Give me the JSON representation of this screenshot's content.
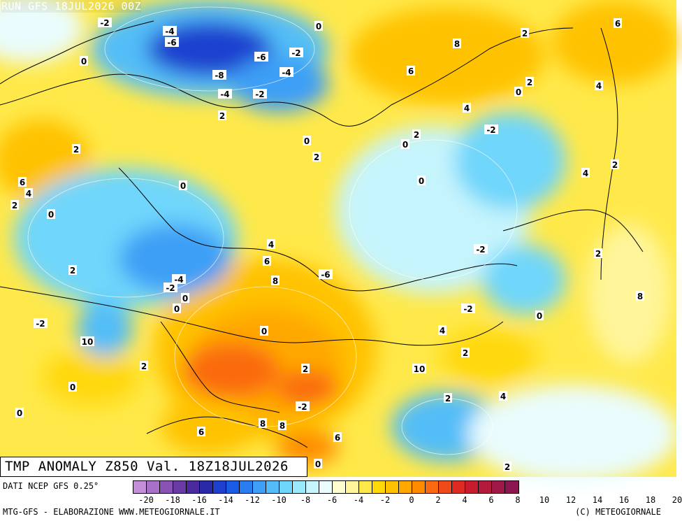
{
  "run_label": "RUN GFS 18JUL2026 00Z",
  "title": "TMP ANOMALY Z850 Val. 18Z18JUL2026",
  "data_source": "DATI NCEP GFS 0.25°",
  "footer_left": "MTG-GFS - ELABORAZIONE WWW.METEOGIORNALE.IT",
  "footer_right": "(C) METEOGIORNALE",
  "colorbar": {
    "colors": [
      "#c58fd8",
      "#a870c8",
      "#8b52b5",
      "#6a3ba6",
      "#4b2a9e",
      "#2a2aa8",
      "#1f3fcf",
      "#1a5be6",
      "#2a7df0",
      "#3e9ff6",
      "#52bdf8",
      "#6fd6fb",
      "#9ae9fc",
      "#c6f4fc",
      "#eafcfd",
      "#fdfdd0",
      "#fff59a",
      "#ffe94a",
      "#ffd80a",
      "#ffc200",
      "#ffa800",
      "#ff8c00",
      "#fb6a10",
      "#f04a1a",
      "#dd2a22",
      "#c81c2e",
      "#b31a3c",
      "#a01848",
      "#8e1650"
    ],
    "tick_labels": [
      "-20",
      "-18",
      "-16",
      "-14",
      "-12",
      "-10",
      "-8",
      "-6",
      "-4",
      "-2",
      "0",
      "2",
      "4",
      "6",
      "8",
      "10",
      "12",
      "14",
      "16",
      "18",
      "20"
    ]
  },
  "visible_ticks": [
    "−20",
    "−16",
    "−14",
    "−12",
    "−10",
    "−8",
    "−6",
    "−4",
    "−2",
    "0",
    "2",
    "4",
    "6",
    "8",
    "10",
    "12",
    "14",
    "16",
    "20"
  ],
  "map_labels": [
    {
      "text": "-2"
    },
    {
      "text": "-4"
    },
    {
      "text": "-6"
    },
    {
      "text": "0"
    },
    {
      "text": "-6"
    },
    {
      "text": "-2"
    },
    {
      "text": "0"
    },
    {
      "text": "-8"
    },
    {
      "text": "-4"
    },
    {
      "text": "-4"
    },
    {
      "text": "-2"
    },
    {
      "text": "2"
    },
    {
      "text": "2"
    },
    {
      "text": "8"
    },
    {
      "text": "6"
    },
    {
      "text": "2"
    },
    {
      "text": "6"
    },
    {
      "text": "4"
    },
    {
      "text": "0"
    },
    {
      "text": "4"
    },
    {
      "text": "-2"
    },
    {
      "text": "0"
    },
    {
      "text": "2"
    },
    {
      "text": "2"
    },
    {
      "text": "2"
    },
    {
      "text": "0"
    },
    {
      "text": "0"
    },
    {
      "text": "6"
    },
    {
      "text": "4"
    },
    {
      "text": "2"
    },
    {
      "text": "0"
    },
    {
      "text": "4"
    },
    {
      "text": "2"
    },
    {
      "text": "4"
    },
    {
      "text": "6"
    },
    {
      "text": "-2"
    },
    {
      "text": "2"
    },
    {
      "text": "8"
    },
    {
      "text": "-6"
    },
    {
      "text": "-4"
    },
    {
      "text": "-2"
    },
    {
      "text": "0"
    },
    {
      "text": "0"
    },
    {
      "text": "2"
    },
    {
      "text": "0"
    },
    {
      "text": "-2"
    },
    {
      "text": "-2"
    },
    {
      "text": "0"
    },
    {
      "text": "10"
    },
    {
      "text": "0"
    },
    {
      "text": "4"
    },
    {
      "text": "2"
    },
    {
      "text": "8"
    },
    {
      "text": "2"
    },
    {
      "text": "2"
    },
    {
      "text": "10"
    },
    {
      "text": "-2"
    },
    {
      "text": "2"
    },
    {
      "text": "0"
    },
    {
      "text": "4"
    },
    {
      "text": "6"
    },
    {
      "text": "8"
    },
    {
      "text": "6"
    },
    {
      "text": "8"
    },
    {
      "text": "0"
    },
    {
      "text": "0"
    },
    {
      "text": "2"
    }
  ]
}
